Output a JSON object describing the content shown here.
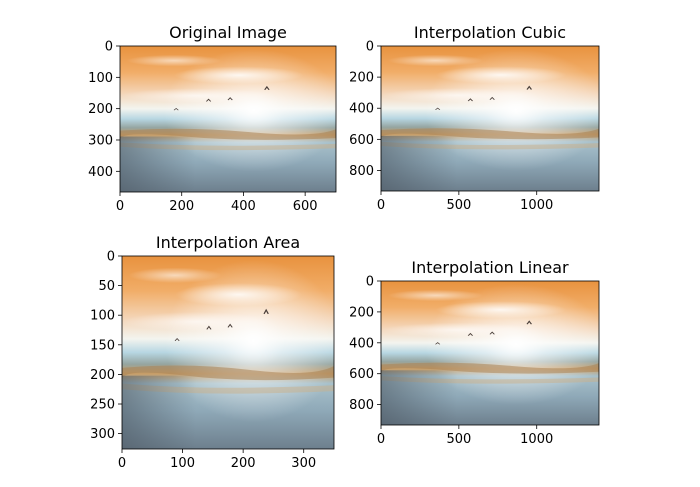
{
  "chart_data": [
    {
      "type": "image",
      "title": "Original Image",
      "xlim": [
        0,
        700
      ],
      "ylim": [
        466,
        0
      ],
      "xticks": [
        0,
        200,
        400,
        600
      ],
      "yticks": [
        0,
        100,
        200,
        300,
        400
      ]
    },
    {
      "type": "image",
      "title": "Interpolation Cubic",
      "xlim": [
        0,
        1400
      ],
      "ylim": [
        932,
        0
      ],
      "xticks": [
        0,
        500,
        1000
      ],
      "yticks": [
        0,
        200,
        400,
        600,
        800
      ]
    },
    {
      "type": "image",
      "title": "Interpolation Area",
      "xlim": [
        0,
        350
      ],
      "ylim": [
        326,
        0
      ],
      "xticks": [
        0,
        100,
        200,
        300
      ],
      "yticks": [
        0,
        50,
        100,
        150,
        200,
        250,
        300
      ]
    },
    {
      "type": "image",
      "title": "Interpolation Linear",
      "xlim": [
        0,
        1400
      ],
      "ylim": [
        932,
        0
      ],
      "xticks": [
        0,
        500,
        1000
      ],
      "yticks": [
        0,
        200,
        400,
        600,
        800
      ]
    }
  ]
}
